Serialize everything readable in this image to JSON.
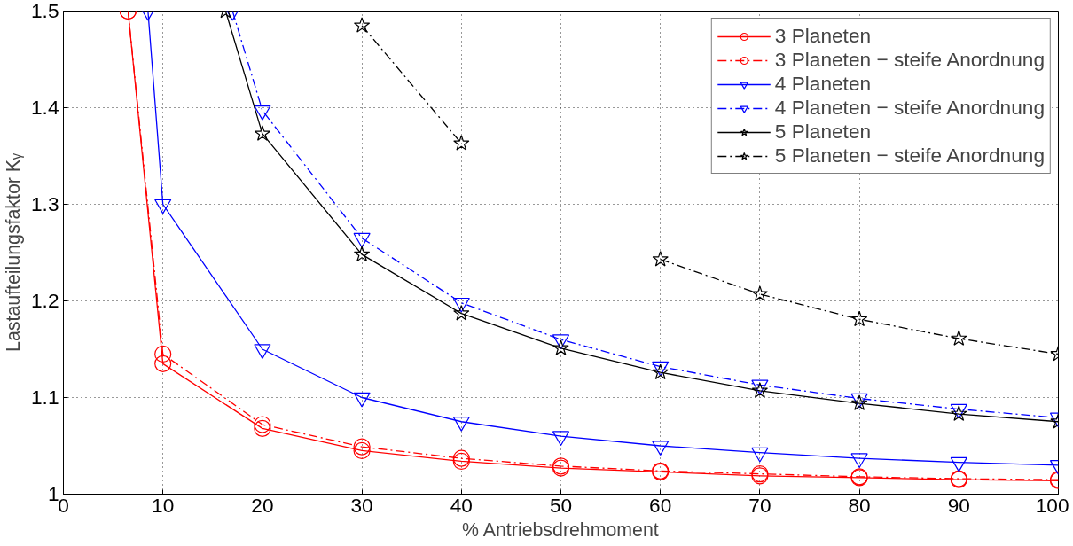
{
  "chart_data": {
    "type": "line",
    "xlabel": "% Antriebsdrehmoment",
    "ylabel": "Lastaufteilungsfaktor Kᵧ",
    "xlim": [
      0,
      100
    ],
    "ylim": [
      1,
      1.5
    ],
    "xticks": [
      0,
      10,
      20,
      30,
      40,
      50,
      60,
      70,
      80,
      90,
      100
    ],
    "yticks": [
      1,
      {
        "value": 1.1,
        "label": "1.1"
      },
      {
        "value": 1.2,
        "label": "1.2"
      },
      {
        "value": 1.3,
        "label": "1.3"
      },
      {
        "value": 1.4,
        "label": "1.4"
      },
      1.5
    ],
    "grid": true,
    "legend": "top right",
    "series": [
      {
        "name": "3 Planeten",
        "color": "#ff0000",
        "marker": "circle",
        "line_style": "solid",
        "x": [
          6.5,
          10,
          20,
          30,
          40,
          50,
          60,
          70,
          80,
          90,
          100
        ],
        "values": [
          1.5,
          1.135,
          1.068,
          1.045,
          1.034,
          1.027,
          1.023,
          1.019,
          1.017,
          1.015,
          1.014
        ]
      },
      {
        "name": "3 Planeten − steife Anordnung",
        "color": "#ff0000",
        "marker": "circle",
        "line_style": "dashed",
        "x": [
          6.5,
          10,
          20,
          30,
          40,
          50,
          60,
          70,
          80,
          90,
          100
        ],
        "values": [
          1.5,
          1.145,
          1.072,
          1.049,
          1.037,
          1.029,
          1.024,
          1.021,
          1.018,
          1.016,
          1.015
        ]
      },
      {
        "name": "4 Planeten",
        "color": "#0000ff",
        "marker": "triangle",
        "line_style": "solid",
        "x": [
          8.5,
          10,
          20,
          30,
          40,
          50,
          60,
          70,
          80,
          90,
          100
        ],
        "values": [
          1.5,
          1.3,
          1.15,
          1.1,
          1.075,
          1.06,
          1.05,
          1.043,
          1.037,
          1.033,
          1.03
        ]
      },
      {
        "name": "4 Planeten − steife Anordnung",
        "color": "#0000ff",
        "marker": "triangle",
        "line_style": "dashed",
        "x": [
          17,
          20,
          30,
          40,
          50,
          60,
          70,
          80,
          90,
          100
        ],
        "values": [
          1.5,
          1.397,
          1.265,
          1.198,
          1.16,
          1.132,
          1.113,
          1.099,
          1.088,
          1.079
        ]
      },
      {
        "name": "5 Planeten",
        "color": "#000000",
        "marker": "star",
        "line_style": "solid",
        "x": [
          16.3,
          20,
          30,
          40,
          50,
          60,
          70,
          80,
          90,
          100
        ],
        "values": [
          1.5,
          1.373,
          1.248,
          1.187,
          1.151,
          1.126,
          1.107,
          1.094,
          1.083,
          1.075
        ]
      },
      {
        "name": "5 Planeten − steife Anordnung",
        "color": "#000000",
        "marker": "star",
        "line_style": "dashed",
        "x": [
          30,
          40,
          50,
          60,
          70,
          80,
          90,
          100
        ],
        "values": [
          1.485,
          1.363,
          null,
          1.243,
          1.207,
          1.181,
          1.161,
          1.145
        ]
      }
    ]
  }
}
